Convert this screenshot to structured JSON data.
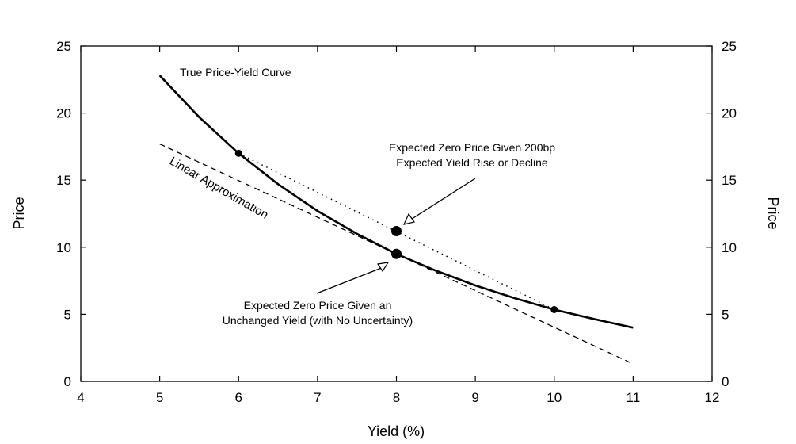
{
  "chart_data": {
    "type": "line",
    "title": "",
    "xlabel": "Yield (%)",
    "ylabel": "Price",
    "ylabel_right": "Price",
    "xlim": [
      4,
      12
    ],
    "ylim": [
      0,
      25
    ],
    "xticks": [
      4,
      5,
      6,
      7,
      8,
      9,
      10,
      11,
      12
    ],
    "yticks": [
      0,
      5,
      10,
      15,
      20,
      25
    ],
    "grid": false,
    "legend": "none",
    "series": [
      {
        "style": "solid-thick",
        "x": [
          5,
          5.5,
          6,
          6.5,
          7,
          7.5,
          8,
          8.5,
          9,
          9.5,
          10,
          10.5,
          11
        ],
        "y": [
          22.8,
          19.7,
          17.0,
          14.7,
          12.7,
          11.0,
          9.5,
          8.25,
          7.15,
          6.2,
          5.35,
          4.65,
          4.0
        ]
      },
      {
        "style": "dashed",
        "x": [
          5,
          11
        ],
        "y": [
          17.7,
          1.3
        ]
      },
      {
        "style": "dotted",
        "x": [
          6,
          10
        ],
        "y": [
          17.0,
          5.35
        ]
      }
    ],
    "points": [
      {
        "x": 6,
        "y": 17.0,
        "size": "small"
      },
      {
        "x": 10,
        "y": 5.35,
        "size": "small"
      },
      {
        "x": 8,
        "y": 11.2,
        "size": "large"
      },
      {
        "x": 8,
        "y": 9.5,
        "size": "large"
      }
    ],
    "annotations": {
      "true_curve": "True Price-Yield Curve",
      "linear_approx": "Linear Approximation",
      "expected_rise_1": "Expected Zero Price Given 200bp",
      "expected_rise_2": "Expected Yield Rise or Decline",
      "unchanged_1": "Expected Zero Price Given an",
      "unchanged_2": "Unchanged Yield (with No Uncertainty)"
    }
  }
}
